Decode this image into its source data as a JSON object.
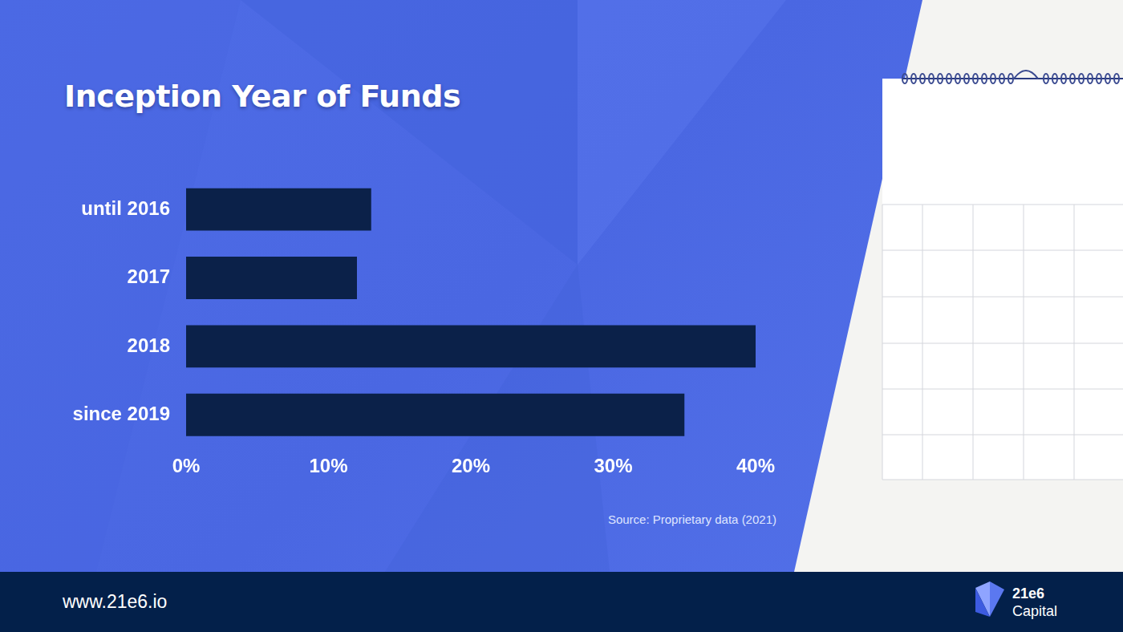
{
  "chart_data": {
    "type": "bar",
    "title": "Inception Year of Funds",
    "orientation": "horizontal",
    "categories": [
      "until 2016",
      "2017",
      "2018",
      "since 2019"
    ],
    "values": [
      13,
      12,
      40,
      35
    ],
    "color": "#0b2149",
    "xlim": [
      0,
      40
    ],
    "xticks": [
      {
        "value": 0,
        "label": "0%"
      },
      {
        "value": 10,
        "label": "10%"
      },
      {
        "value": 20,
        "label": "20%"
      },
      {
        "value": 30,
        "label": "30%"
      },
      {
        "value": 40,
        "label": "40%"
      }
    ],
    "grid": false,
    "annotations": [
      "Source: Proprietary data (2021)"
    ]
  },
  "footer": {
    "url": "www.21e6.io",
    "logo": [
      "21e6",
      "Capital"
    ]
  }
}
